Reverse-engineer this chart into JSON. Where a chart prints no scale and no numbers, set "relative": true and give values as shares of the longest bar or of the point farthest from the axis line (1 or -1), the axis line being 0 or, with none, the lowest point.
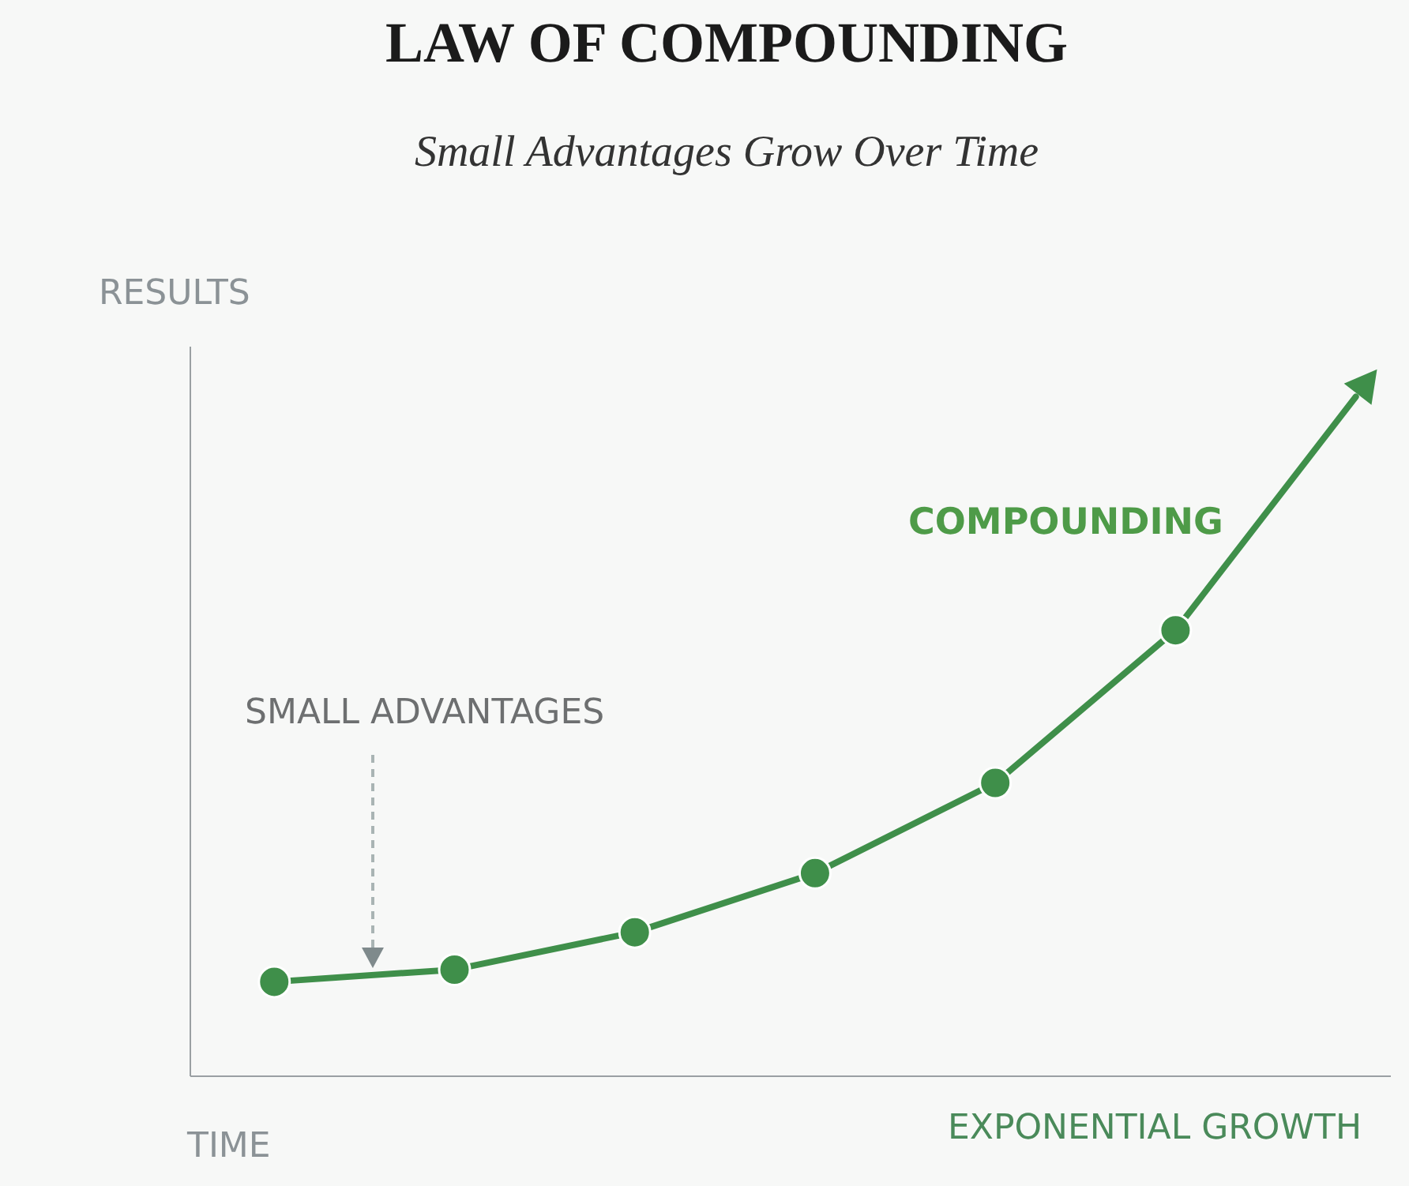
{
  "chart_data": {
    "type": "line",
    "title": "LAW OF COMPOUNDING",
    "subtitle": "Small Advantages Grow Over Time",
    "xlabel": "TIME",
    "ylabel": "RESULTS",
    "relative": true,
    "marker": "circle",
    "categories": [
      null,
      null,
      null,
      null,
      null,
      null,
      null
    ],
    "series": [
      {
        "color": "#3f8f4a",
        "values": [
          0.138,
          0.156,
          0.211,
          0.298,
          0.431,
          0.656,
          1.0
        ]
      }
    ],
    "annotations": [
      "SMALL ADVANTAGES",
      "COMPOUNDING",
      "EXPONENTIAL GROWTH"
    ]
  }
}
